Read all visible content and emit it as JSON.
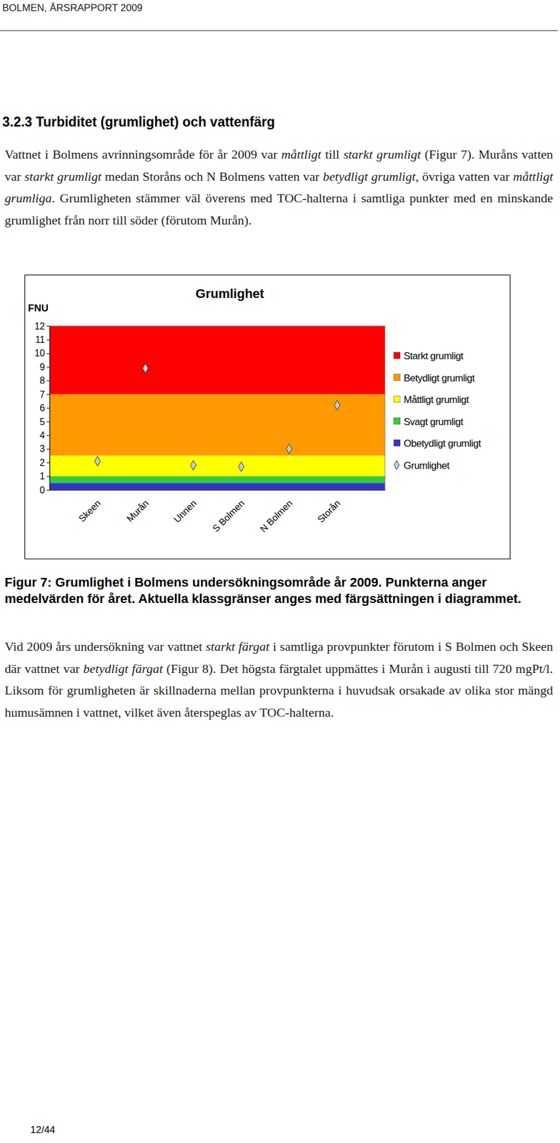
{
  "header": "BOLMEN, ÅRSRAPPORT 2009",
  "heading": "3.2.3 Turbiditet (grumlighet) och vattenfärg",
  "paragraphs": [
    {
      "runs": [
        {
          "text": "Vattnet i Bolmens avrinningsområde för år 2009 var "
        },
        {
          "text": "måttligt",
          "italic": true
        },
        {
          "text": " till "
        },
        {
          "text": "starkt grumligt",
          "italic": true
        },
        {
          "text": " (Figur 7). Muråns vatten var "
        },
        {
          "text": "starkt grumligt",
          "italic": true
        },
        {
          "text": " medan Storåns och N Bolmens vatten var "
        },
        {
          "text": "betydligt grumligt",
          "italic": true
        },
        {
          "text": ", övriga vatten var "
        },
        {
          "text": "måttligt grumliga",
          "italic": true
        },
        {
          "text": ". Grumligheten stämmer väl överens med TOC-halterna i samtliga punkter med en minskande grumlighet från norr till söder (förutom Murån)."
        }
      ]
    },
    {
      "runs": [
        {
          "text": "Vid 2009 års undersökning var vattnet "
        },
        {
          "text": "starkt färgat",
          "italic": true
        },
        {
          "text": " i samtliga provpunkter förutom i S Bolmen och Skeen där vattnet var "
        },
        {
          "text": "betydligt färgat",
          "italic": true
        },
        {
          "text": " (Figur 8). Det högsta färgtalet uppmättes i Murån i augusti till 720 mgPt/l. Liksom för grumligheten är skillnaderna mellan provpunkterna i huvudsak orsakade av olika stor mängd humusämnen i vattnet, vilket även återspeglas av TOC-halterna."
        }
      ]
    }
  ],
  "chart_data": {
    "type": "scatter",
    "title": "Grumlighet",
    "y_label": "FNU",
    "categories": [
      "Skeen",
      "Murån",
      "Unnen",
      "S Bolmen",
      "N Bolmen",
      "Storån"
    ],
    "series": [
      {
        "name": "Grumlighet",
        "color": "#b4d2dc",
        "marker": "diamond",
        "values": [
          2.1,
          8.9,
          1.8,
          1.7,
          3.0,
          6.2
        ]
      }
    ],
    "bands": [
      {
        "name": "Starkt grumligt",
        "color": "#ff0000",
        "from": 7,
        "to": 12
      },
      {
        "name": "Betydligt grumligt",
        "color": "#ff9900",
        "from": 2.5,
        "to": 7
      },
      {
        "name": "Måttligt grumligt",
        "color": "#ffff00",
        "from": 1,
        "to": 2.5
      },
      {
        "name": "Svagt grumligt",
        "color": "#33cc33",
        "from": 0.5,
        "to": 1
      },
      {
        "name": "Obetydligt grumligt",
        "color": "#3333cc",
        "from": 0,
        "to": 0.5
      }
    ],
    "ylim": [
      0,
      12
    ],
    "yticks": [
      0,
      1,
      2,
      3,
      4,
      5,
      6,
      7,
      8,
      9,
      10,
      11,
      12
    ],
    "legend": "right"
  },
  "caption": "Figur 7: Grumlighet i Bolmens undersökningsområde år 2009. Punkterna anger medelvärden för året. Aktuella klassgränser anges med färgsättningen i diagrammet.",
  "page_number": "12/44"
}
